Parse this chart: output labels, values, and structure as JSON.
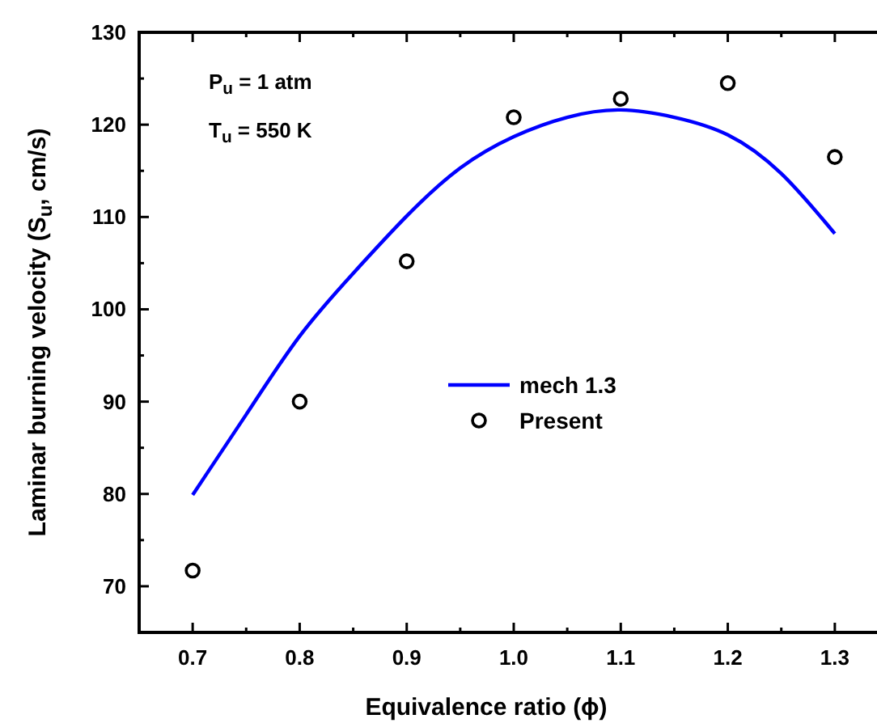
{
  "chart_data": {
    "type": "scatter",
    "xlabel": "Equivalence ratio (ϕ)",
    "ylabel": "Laminar burning velocity (S$_{u}$, cm/s)",
    "xlim": [
      0.65,
      1.35
    ],
    "ylim": [
      65,
      130
    ],
    "xticks": [
      0.7,
      {
        "value": 0.75,
        "label": null
      },
      0.8,
      {
        "value": 0.85,
        "label": null
      },
      0.9,
      {
        "value": 0.95,
        "label": null
      },
      {
        "value": 1.0,
        "label": "1.0"
      },
      {
        "value": 1.05,
        "label": null
      },
      1.1,
      {
        "value": 1.15,
        "label": null
      },
      1.2,
      {
        "value": 1.25,
        "label": null
      },
      1.3
    ],
    "yticks": [
      70,
      {
        "value": 75,
        "label": null
      },
      80,
      {
        "value": 85,
        "label": null
      },
      90,
      {
        "value": 95,
        "label": null
      },
      100,
      {
        "value": 105,
        "label": null
      },
      110,
      {
        "value": 115,
        "label": null
      },
      120,
      {
        "value": 125,
        "label": null
      },
      130
    ],
    "legend": "center",
    "grid": false,
    "annotations": [
      "P$_{u}$ = 1 atm",
      "T$_{u}$ = 550 K"
    ],
    "series": [
      {
        "name": "mech 1.3",
        "type": "line",
        "color": "#0000ff",
        "marker": "none",
        "line_style": "solid",
        "x": [
          0.7,
          0.75,
          0.8,
          0.85,
          0.9,
          0.95,
          1.0,
          1.05,
          1.1,
          1.15,
          1.2,
          1.25,
          1.3
        ],
        "values": [
          79.9,
          88.6,
          97.1,
          103.9,
          110.1,
          115.3,
          118.7,
          120.8,
          121.6,
          120.8,
          118.9,
          114.7,
          108.2
        ]
      },
      {
        "name": "Present",
        "type": "scatter",
        "color": "#000000",
        "marker": "circle",
        "x": [
          0.7,
          0.8,
          0.9,
          1.0,
          1.1,
          1.2,
          1.3
        ],
        "values": [
          71.7,
          90,
          105.2,
          120.8,
          122.8,
          124.5,
          116.5
        ]
      }
    ]
  }
}
